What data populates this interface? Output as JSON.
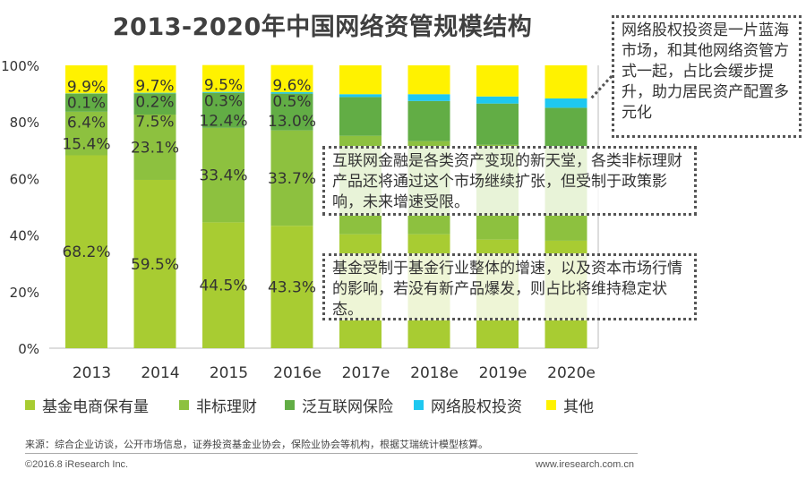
{
  "chart_data": {
    "type": "bar",
    "stacked": true,
    "title": "2013-2020年中国网络资管规模结构",
    "categories": [
      "2013",
      "2014",
      "2015",
      "2016e",
      "2017e",
      "2018e",
      "2019e",
      "2020e"
    ],
    "ylim": [
      0,
      100
    ],
    "yticks": [
      "0%",
      "20%",
      "40%",
      "60%",
      "80%",
      "100%"
    ],
    "legend_position": "bottom",
    "series": [
      {
        "name": "基金电商保有量",
        "color": "#a8cc32",
        "values": [
          68.2,
          59.5,
          44.5,
          43.3,
          40.3,
          40.3,
          38.4,
          38.0
        ],
        "labels": [
          "68.2%",
          "59.5%",
          "44.5%",
          "43.3%",
          "",
          "",
          "",
          ""
        ]
      },
      {
        "name": "非标理财",
        "color": "#8dc13f",
        "values": [
          15.4,
          23.1,
          33.4,
          33.7,
          34.8,
          32.9,
          33.5,
          33.0
        ],
        "labels": [
          "15.4%",
          "23.1%",
          "33.4%",
          "33.7%",
          "",
          "",
          "",
          ""
        ]
      },
      {
        "name": "泛互联网保险",
        "color": "#62ad45",
        "values": [
          6.4,
          7.5,
          12.4,
          13.0,
          13.7,
          14.2,
          14.6,
          14.0
        ],
        "labels": [
          "6.4%",
          "7.5%",
          "12.4%",
          "13.0%",
          "",
          "",
          "",
          ""
        ]
      },
      {
        "name": "网络股权投资",
        "color": "#1ec8f0",
        "values": [
          0.1,
          0.2,
          0.3,
          0.5,
          1.0,
          2.4,
          2.5,
          3.3
        ],
        "labels": [
          "0.1%",
          "0.2%",
          "0.3%",
          "0.5%",
          "",
          "",
          "",
          ""
        ]
      },
      {
        "name": "其他",
        "color": "#fff200",
        "values": [
          9.9,
          9.7,
          9.5,
          9.6,
          10.2,
          10.2,
          11.0,
          11.7
        ],
        "labels": [
          "9.9%",
          "9.7%",
          "9.5%",
          "9.6%",
          "",
          "",
          "",
          ""
        ]
      }
    ]
  },
  "callouts": [
    "网络股权投资是一片蓝海市场，和其他网络资管方式一起，占比会缓步提升，助力居民资产配置多元化",
    "互联网金融是各类资产变现的新天堂，各类非标理财产品还将通过这个市场继续扩张，但受制于政策影响，未来增速受限。",
    "基金受制于基金行业整体的增速，以及资本市场行情的影响，若没有新产品爆发，则占比将维持稳定状态。"
  ],
  "footer": {
    "source": "来源：综合企业访谈，公开市场信息，证券投资基金业协会，保险业协会等机构，根据艾瑞统计模型核算。",
    "copyright": "©2016.8 iResearch Inc.",
    "website": "www.iresearch.com.cn"
  }
}
